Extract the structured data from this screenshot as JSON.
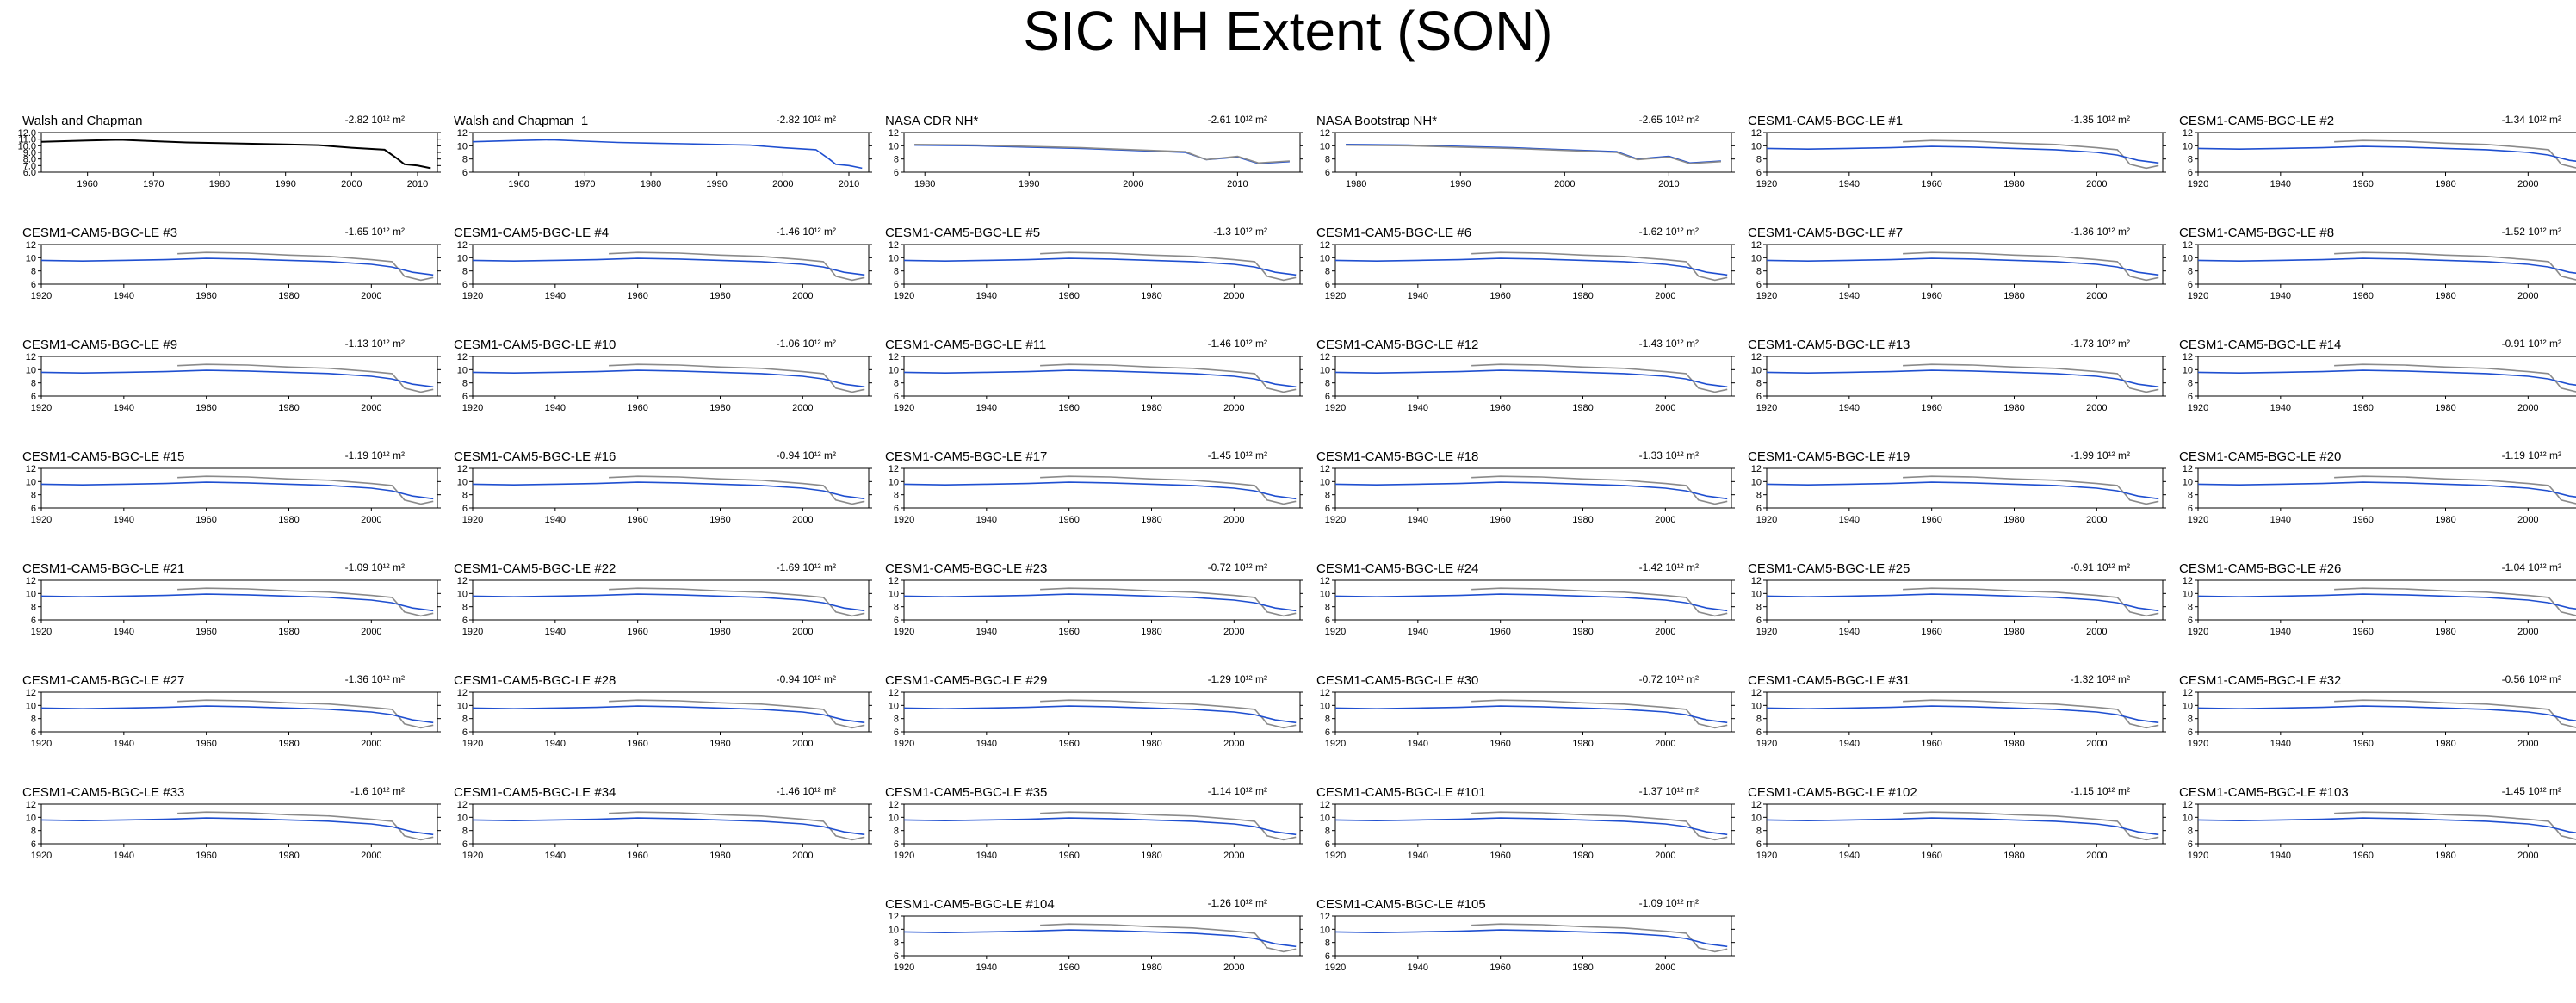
{
  "page": {
    "title": "SIC NH Extent (SON)"
  },
  "colors": {
    "observed": "#000000",
    "ensemble": "#1f4fd0",
    "reference_gray": "#8a8a8a"
  },
  "trend_unit": "10¹² m²",
  "chart_data": [
    {
      "type": "line",
      "title": "Walsh and Chapman",
      "trend": "-2.82",
      "xlim": [
        1953,
        2013
      ],
      "xticks": [
        1960,
        1970,
        1980,
        1990,
        2000,
        2010
      ],
      "ylim": [
        6,
        12
      ],
      "yticks": [
        "6.0",
        "7.0",
        "8.0",
        "9.0",
        "10.0",
        "11.0",
        "12.0"
      ],
      "series": [
        {
          "color": "#000000",
          "x": [
            1953,
            1960,
            1965,
            1970,
            1975,
            1980,
            1985,
            1990,
            1995,
            2000,
            2005,
            2007,
            2008,
            2010,
            2012
          ],
          "y": [
            10.6,
            10.8,
            10.9,
            10.7,
            10.5,
            10.4,
            10.3,
            10.2,
            10.1,
            9.7,
            9.4,
            8.0,
            7.2,
            7.0,
            6.6
          ]
        }
      ]
    },
    {
      "type": "line",
      "title": "Walsh and Chapman_1",
      "trend": "-2.82",
      "xlim": [
        1953,
        2013
      ],
      "xticks": [
        1960,
        1970,
        1980,
        1990,
        2000,
        2010
      ],
      "ylim": [
        6,
        12
      ],
      "yticks": [
        "6",
        "8",
        "10",
        "12"
      ],
      "series": [
        {
          "color": "#1f4fd0",
          "x": [
            1953,
            1960,
            1965,
            1970,
            1975,
            1980,
            1985,
            1990,
            1995,
            2000,
            2005,
            2007,
            2008,
            2010,
            2012
          ],
          "y": [
            10.6,
            10.8,
            10.9,
            10.7,
            10.5,
            10.4,
            10.3,
            10.2,
            10.1,
            9.7,
            9.4,
            8.0,
            7.2,
            7.0,
            6.6
          ]
        }
      ]
    },
    {
      "type": "line",
      "title": "NASA CDR NH*",
      "trend": "-2.61",
      "xlim": [
        1978,
        2016
      ],
      "xticks": [
        1980,
        1990,
        2000,
        2010
      ],
      "ylim": [
        6,
        12
      ],
      "yticks": [
        "6",
        "8",
        "10",
        "12"
      ],
      "series": [
        {
          "color": "#1f4fd0",
          "x": [
            1979,
            1985,
            1990,
            1995,
            2000,
            2005,
            2007,
            2010,
            2012,
            2015
          ],
          "y": [
            10.1,
            10.0,
            9.8,
            9.6,
            9.3,
            9.0,
            7.9,
            8.3,
            7.3,
            7.6
          ]
        },
        {
          "color": "#8a8a8a",
          "x": [
            1979,
            1985,
            1990,
            1995,
            2000,
            2005,
            2007,
            2010,
            2012,
            2015
          ],
          "y": [
            10.2,
            10.1,
            9.9,
            9.7,
            9.4,
            9.1,
            7.9,
            8.4,
            7.4,
            7.7
          ]
        }
      ]
    },
    {
      "type": "line",
      "title": "NASA Bootstrap NH*",
      "trend": "-2.65",
      "xlim": [
        1978,
        2016
      ],
      "xticks": [
        1980,
        1990,
        2000,
        2010
      ],
      "ylim": [
        6,
        12
      ],
      "yticks": [
        "6",
        "8",
        "10",
        "12"
      ],
      "series": [
        {
          "color": "#1f4fd0",
          "x": [
            1979,
            1985,
            1990,
            1995,
            2000,
            2005,
            2007,
            2010,
            2012,
            2015
          ],
          "y": [
            10.2,
            10.1,
            9.9,
            9.7,
            9.4,
            9.1,
            8.0,
            8.4,
            7.4,
            7.7
          ]
        },
        {
          "color": "#8a8a8a",
          "x": [
            1979,
            1985,
            1990,
            1995,
            2000,
            2005,
            2007,
            2010,
            2012,
            2015
          ],
          "y": [
            10.1,
            10.0,
            9.8,
            9.6,
            9.3,
            9.0,
            7.9,
            8.3,
            7.3,
            7.6
          ]
        }
      ]
    },
    {
      "type": "line",
      "title": "CESM1-CAM5-BGC-LE #1",
      "trend": "-1.35"
    },
    {
      "type": "line",
      "title": "CESM1-CAM5-BGC-LE #2",
      "trend": "-1.34"
    },
    {
      "type": "line",
      "title": "CESM1-CAM5-BGC-LE #3",
      "trend": "-1.65"
    },
    {
      "type": "line",
      "title": "CESM1-CAM5-BGC-LE #4",
      "trend": "-1.46"
    },
    {
      "type": "line",
      "title": "CESM1-CAM5-BGC-LE #5",
      "trend": "-1.3"
    },
    {
      "type": "line",
      "title": "CESM1-CAM5-BGC-LE #6",
      "trend": "-1.62"
    },
    {
      "type": "line",
      "title": "CESM1-CAM5-BGC-LE #7",
      "trend": "-1.36"
    },
    {
      "type": "line",
      "title": "CESM1-CAM5-BGC-LE #8",
      "trend": "-1.52"
    },
    {
      "type": "line",
      "title": "CESM1-CAM5-BGC-LE #9",
      "trend": "-1.13"
    },
    {
      "type": "line",
      "title": "CESM1-CAM5-BGC-LE #10",
      "trend": "-1.06"
    },
    {
      "type": "line",
      "title": "CESM1-CAM5-BGC-LE #11",
      "trend": "-1.46"
    },
    {
      "type": "line",
      "title": "CESM1-CAM5-BGC-LE #12",
      "trend": "-1.43"
    },
    {
      "type": "line",
      "title": "CESM1-CAM5-BGC-LE #13",
      "trend": "-1.73"
    },
    {
      "type": "line",
      "title": "CESM1-CAM5-BGC-LE #14",
      "trend": "-0.91"
    },
    {
      "type": "line",
      "title": "CESM1-CAM5-BGC-LE #15",
      "trend": "-1.19"
    },
    {
      "type": "line",
      "title": "CESM1-CAM5-BGC-LE #16",
      "trend": "-0.94"
    },
    {
      "type": "line",
      "title": "CESM1-CAM5-BGC-LE #17",
      "trend": "-1.45"
    },
    {
      "type": "line",
      "title": "CESM1-CAM5-BGC-LE #18",
      "trend": "-1.33"
    },
    {
      "type": "line",
      "title": "CESM1-CAM5-BGC-LE #19",
      "trend": "-1.99"
    },
    {
      "type": "line",
      "title": "CESM1-CAM5-BGC-LE #20",
      "trend": "-1.19"
    },
    {
      "type": "line",
      "title": "CESM1-CAM5-BGC-LE #21",
      "trend": "-1.09"
    },
    {
      "type": "line",
      "title": "CESM1-CAM5-BGC-LE #22",
      "trend": "-1.69"
    },
    {
      "type": "line",
      "title": "CESM1-CAM5-BGC-LE #23",
      "trend": "-0.72"
    },
    {
      "type": "line",
      "title": "CESM1-CAM5-BGC-LE #24",
      "trend": "-1.42"
    },
    {
      "type": "line",
      "title": "CESM1-CAM5-BGC-LE #25",
      "trend": "-0.91"
    },
    {
      "type": "line",
      "title": "CESM1-CAM5-BGC-LE #26",
      "trend": "-1.04"
    },
    {
      "type": "line",
      "title": "CESM1-CAM5-BGC-LE #27",
      "trend": "-1.36"
    },
    {
      "type": "line",
      "title": "CESM1-CAM5-BGC-LE #28",
      "trend": "-0.94"
    },
    {
      "type": "line",
      "title": "CESM1-CAM5-BGC-LE #29",
      "trend": "-1.29"
    },
    {
      "type": "line",
      "title": "CESM1-CAM5-BGC-LE #30",
      "trend": "-0.72"
    },
    {
      "type": "line",
      "title": "CESM1-CAM5-BGC-LE #31",
      "trend": "-1.32"
    },
    {
      "type": "line",
      "title": "CESM1-CAM5-BGC-LE #32",
      "trend": "-0.56"
    },
    {
      "type": "line",
      "title": "CESM1-CAM5-BGC-LE #33",
      "trend": "-1.6"
    },
    {
      "type": "line",
      "title": "CESM1-CAM5-BGC-LE #34",
      "trend": "-1.46"
    },
    {
      "type": "line",
      "title": "CESM1-CAM5-BGC-LE #35",
      "trend": "-1.14"
    },
    {
      "type": "line",
      "title": "CESM1-CAM5-BGC-LE #101",
      "trend": "-1.37"
    },
    {
      "type": "line",
      "title": "CESM1-CAM5-BGC-LE #102",
      "trend": "-1.15"
    },
    {
      "type": "line",
      "title": "CESM1-CAM5-BGC-LE #103",
      "trend": "-1.45"
    },
    {
      "type": "line",
      "title": "CESM1-CAM5-BGC-LE #104",
      "trend": "-1.26"
    },
    {
      "type": "line",
      "title": "CESM1-CAM5-BGC-LE #105",
      "trend": "-1.09"
    }
  ],
  "ensemble_defaults": {
    "xlim": [
      1920,
      2016
    ],
    "xticks": [
      1920,
      1940,
      1960,
      1980,
      2000
    ],
    "ylim": [
      6,
      12
    ],
    "yticks": [
      "6",
      "8",
      "10",
      "12"
    ],
    "model_x": [
      1920,
      1930,
      1940,
      1950,
      1960,
      1970,
      1980,
      1990,
      2000,
      2005,
      2010,
      2015
    ],
    "model_y": [
      9.6,
      9.5,
      9.6,
      9.7,
      9.9,
      9.8,
      9.6,
      9.4,
      9.0,
      8.6,
      7.8,
      7.4
    ],
    "reference_x": [
      1953,
      1960,
      1970,
      1980,
      1990,
      2000,
      2005,
      2007,
      2008,
      2012,
      2015
    ],
    "reference_y": [
      10.6,
      10.8,
      10.7,
      10.4,
      10.2,
      9.7,
      9.4,
      8.0,
      7.2,
      6.6,
      7.0
    ]
  }
}
